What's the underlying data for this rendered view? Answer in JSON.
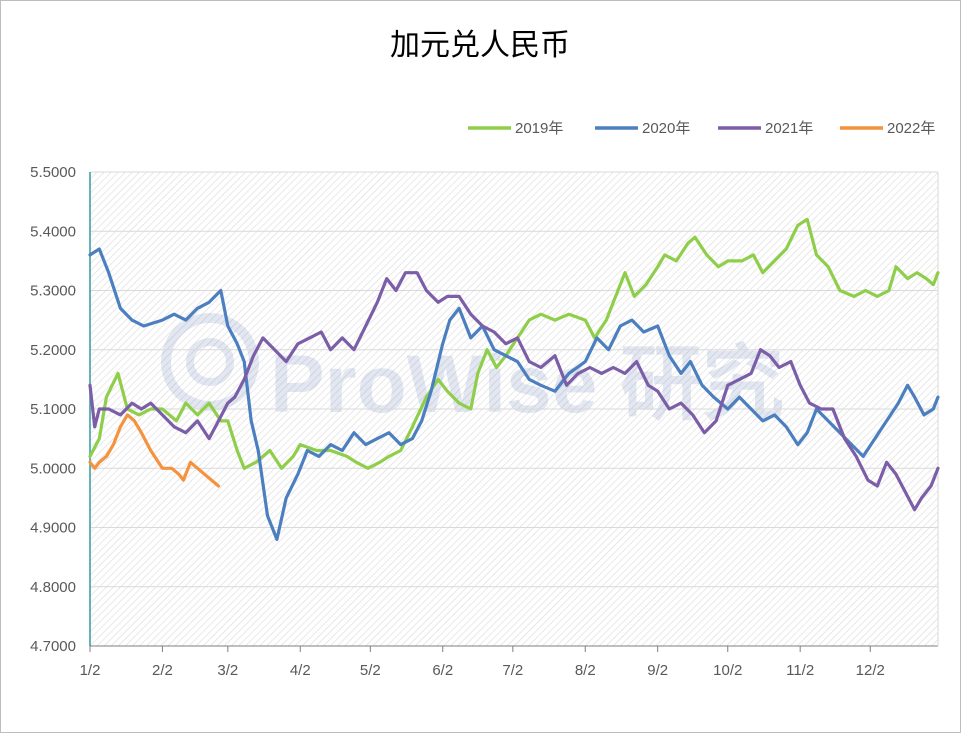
{
  "chart_data": {
    "type": "line",
    "title": "加元兑人民币",
    "xlabel": "",
    "ylabel": "",
    "ylim": [
      4.7,
      5.5
    ],
    "yticks": [
      "4.7000",
      "4.8000",
      "4.9000",
      "5.0000",
      "5.1000",
      "5.2000",
      "5.3000",
      "5.4000",
      "5.5000"
    ],
    "x_axis_start": "1/2",
    "x_axis_end": "12/31",
    "xticks": [
      "1/2",
      "2/2",
      "3/2",
      "4/2",
      "5/2",
      "6/2",
      "7/2",
      "8/2",
      "9/2",
      "10/2",
      "11/2",
      "12/2"
    ],
    "grid": true,
    "legend_position": "top-right",
    "watermark": "ProWise 研究",
    "series": [
      {
        "name": "2019年",
        "color": "#8fce4a",
        "points": [
          [
            "1/2",
            5.02
          ],
          [
            "1/6",
            5.05
          ],
          [
            "1/9",
            5.12
          ],
          [
            "1/14",
            5.16
          ],
          [
            "1/18",
            5.1
          ],
          [
            "1/23",
            5.09
          ],
          [
            "1/28",
            5.1
          ],
          [
            "2/2",
            5.1
          ],
          [
            "2/8",
            5.08
          ],
          [
            "2/12",
            5.11
          ],
          [
            "2/17",
            5.09
          ],
          [
            "2/22",
            5.11
          ],
          [
            "2/27",
            5.08
          ],
          [
            "3/2",
            5.08
          ],
          [
            "3/6",
            5.03
          ],
          [
            "3/9",
            5.0
          ],
          [
            "3/14",
            5.01
          ],
          [
            "3/20",
            5.03
          ],
          [
            "3/25",
            5.0
          ],
          [
            "3/30",
            5.02
          ],
          [
            "4/2",
            5.04
          ],
          [
            "4/9",
            5.03
          ],
          [
            "4/15",
            5.03
          ],
          [
            "4/22",
            5.02
          ],
          [
            "4/26",
            5.01
          ],
          [
            "5/1",
            5.0
          ],
          [
            "5/6",
            5.01
          ],
          [
            "5/10",
            5.02
          ],
          [
            "5/15",
            5.03
          ],
          [
            "5/20",
            5.07
          ],
          [
            "5/26",
            5.12
          ],
          [
            "5/31",
            5.15
          ],
          [
            "6/4",
            5.13
          ],
          [
            "6/9",
            5.11
          ],
          [
            "6/14",
            5.1
          ],
          [
            "6/17",
            5.16
          ],
          [
            "6/21",
            5.2
          ],
          [
            "6/25",
            5.17
          ],
          [
            "6/29",
            5.19
          ],
          [
            "7/4",
            5.22
          ],
          [
            "7/9",
            5.25
          ],
          [
            "7/14",
            5.26
          ],
          [
            "7/20",
            5.25
          ],
          [
            "7/26",
            5.26
          ],
          [
            "8/2",
            5.25
          ],
          [
            "8/6",
            5.22
          ],
          [
            "8/11",
            5.25
          ],
          [
            "8/15",
            5.29
          ],
          [
            "8/19",
            5.33
          ],
          [
            "8/23",
            5.29
          ],
          [
            "8/28",
            5.31
          ],
          [
            "9/2",
            5.34
          ],
          [
            "9/5",
            5.36
          ],
          [
            "9/10",
            5.35
          ],
          [
            "9/15",
            5.38
          ],
          [
            "9/18",
            5.39
          ],
          [
            "9/23",
            5.36
          ],
          [
            "9/28",
            5.34
          ],
          [
            "10/2",
            5.35
          ],
          [
            "10/8",
            5.35
          ],
          [
            "10/13",
            5.36
          ],
          [
            "10/17",
            5.33
          ],
          [
            "10/22",
            5.35
          ],
          [
            "10/27",
            5.37
          ],
          [
            "11/1",
            5.41
          ],
          [
            "11/5",
            5.42
          ],
          [
            "11/9",
            5.36
          ],
          [
            "11/14",
            5.34
          ],
          [
            "11/19",
            5.3
          ],
          [
            "11/25",
            5.29
          ],
          [
            "11/30",
            5.3
          ],
          [
            "12/5",
            5.29
          ],
          [
            "12/10",
            5.3
          ],
          [
            "12/13",
            5.34
          ],
          [
            "12/18",
            5.32
          ],
          [
            "12/22",
            5.33
          ],
          [
            "12/26",
            5.32
          ],
          [
            "12/29",
            5.31
          ],
          [
            "12/31",
            5.33
          ]
        ]
      },
      {
        "name": "2020年",
        "color": "#4c7fbf",
        "points": [
          [
            "1/2",
            5.36
          ],
          [
            "1/6",
            5.37
          ],
          [
            "1/10",
            5.33
          ],
          [
            "1/15",
            5.27
          ],
          [
            "1/20",
            5.25
          ],
          [
            "1/25",
            5.24
          ],
          [
            "2/2",
            5.25
          ],
          [
            "2/7",
            5.26
          ],
          [
            "2/12",
            5.25
          ],
          [
            "2/17",
            5.27
          ],
          [
            "2/22",
            5.28
          ],
          [
            "2/27",
            5.3
          ],
          [
            "3/2",
            5.24
          ],
          [
            "3/6",
            5.21
          ],
          [
            "3/9",
            5.18
          ],
          [
            "3/12",
            5.08
          ],
          [
            "3/15",
            5.03
          ],
          [
            "3/19",
            4.92
          ],
          [
            "3/23",
            4.88
          ],
          [
            "3/27",
            4.95
          ],
          [
            "4/1",
            4.99
          ],
          [
            "4/5",
            5.03
          ],
          [
            "4/10",
            5.02
          ],
          [
            "4/15",
            5.04
          ],
          [
            "4/20",
            5.03
          ],
          [
            "4/25",
            5.06
          ],
          [
            "4/30",
            5.04
          ],
          [
            "5/5",
            5.05
          ],
          [
            "5/10",
            5.06
          ],
          [
            "5/15",
            5.04
          ],
          [
            "5/20",
            5.05
          ],
          [
            "5/24",
            5.08
          ],
          [
            "5/28",
            5.13
          ],
          [
            "6/2",
            5.21
          ],
          [
            "6/5",
            5.25
          ],
          [
            "6/9",
            5.27
          ],
          [
            "6/14",
            5.22
          ],
          [
            "6/19",
            5.24
          ],
          [
            "6/24",
            5.2
          ],
          [
            "6/29",
            5.19
          ],
          [
            "7/4",
            5.18
          ],
          [
            "7/9",
            5.15
          ],
          [
            "7/14",
            5.14
          ],
          [
            "7/20",
            5.13
          ],
          [
            "7/26",
            5.16
          ],
          [
            "8/2",
            5.18
          ],
          [
            "8/7",
            5.22
          ],
          [
            "8/12",
            5.2
          ],
          [
            "8/17",
            5.24
          ],
          [
            "8/22",
            5.25
          ],
          [
            "8/27",
            5.23
          ],
          [
            "9/2",
            5.24
          ],
          [
            "9/7",
            5.19
          ],
          [
            "9/12",
            5.16
          ],
          [
            "9/16",
            5.18
          ],
          [
            "9/21",
            5.14
          ],
          [
            "9/26",
            5.12
          ],
          [
            "10/2",
            5.1
          ],
          [
            "10/7",
            5.12
          ],
          [
            "10/12",
            5.1
          ],
          [
            "10/17",
            5.08
          ],
          [
            "10/22",
            5.09
          ],
          [
            "10/27",
            5.07
          ],
          [
            "11/1",
            5.04
          ],
          [
            "11/5",
            5.06
          ],
          [
            "11/9",
            5.1
          ],
          [
            "11/14",
            5.08
          ],
          [
            "11/19",
            5.06
          ],
          [
            "11/24",
            5.04
          ],
          [
            "11/29",
            5.02
          ],
          [
            "12/4",
            5.05
          ],
          [
            "12/9",
            5.08
          ],
          [
            "12/14",
            5.11
          ],
          [
            "12/18",
            5.14
          ],
          [
            "12/21",
            5.12
          ],
          [
            "12/25",
            5.09
          ],
          [
            "12/29",
            5.1
          ],
          [
            "12/31",
            5.12
          ]
        ]
      },
      {
        "name": "2021年",
        "color": "#7b5ea7",
        "points": [
          [
            "1/2",
            5.14
          ],
          [
            "1/4",
            5.07
          ],
          [
            "1/6",
            5.1
          ],
          [
            "1/10",
            5.1
          ],
          [
            "1/15",
            5.09
          ],
          [
            "1/20",
            5.11
          ],
          [
            "1/24",
            5.1
          ],
          [
            "1/28",
            5.11
          ],
          [
            "2/2",
            5.09
          ],
          [
            "2/7",
            5.07
          ],
          [
            "2/12",
            5.06
          ],
          [
            "2/17",
            5.08
          ],
          [
            "2/22",
            5.05
          ],
          [
            "2/26",
            5.08
          ],
          [
            "3/2",
            5.11
          ],
          [
            "3/5",
            5.12
          ],
          [
            "3/9",
            5.15
          ],
          [
            "3/13",
            5.19
          ],
          [
            "3/17",
            5.22
          ],
          [
            "3/22",
            5.2
          ],
          [
            "3/27",
            5.18
          ],
          [
            "4/1",
            5.21
          ],
          [
            "4/6",
            5.22
          ],
          [
            "4/11",
            5.23
          ],
          [
            "4/15",
            5.2
          ],
          [
            "4/20",
            5.22
          ],
          [
            "4/25",
            5.2
          ],
          [
            "4/30",
            5.24
          ],
          [
            "5/5",
            5.28
          ],
          [
            "5/9",
            5.32
          ],
          [
            "5/13",
            5.3
          ],
          [
            "5/17",
            5.33
          ],
          [
            "5/22",
            5.33
          ],
          [
            "5/26",
            5.3
          ],
          [
            "5/31",
            5.28
          ],
          [
            "6/4",
            5.29
          ],
          [
            "6/9",
            5.29
          ],
          [
            "6/14",
            5.26
          ],
          [
            "6/19",
            5.24
          ],
          [
            "6/24",
            5.23
          ],
          [
            "6/29",
            5.21
          ],
          [
            "7/4",
            5.22
          ],
          [
            "7/9",
            5.18
          ],
          [
            "7/14",
            5.17
          ],
          [
            "7/20",
            5.19
          ],
          [
            "7/25",
            5.14
          ],
          [
            "7/30",
            5.16
          ],
          [
            "8/4",
            5.17
          ],
          [
            "8/9",
            5.16
          ],
          [
            "8/14",
            5.17
          ],
          [
            "8/19",
            5.16
          ],
          [
            "8/24",
            5.18
          ],
          [
            "8/29",
            5.14
          ],
          [
            "9/2",
            5.13
          ],
          [
            "9/7",
            5.1
          ],
          [
            "9/12",
            5.11
          ],
          [
            "9/17",
            5.09
          ],
          [
            "9/22",
            5.06
          ],
          [
            "9/27",
            5.08
          ],
          [
            "10/2",
            5.14
          ],
          [
            "10/7",
            5.15
          ],
          [
            "10/12",
            5.16
          ],
          [
            "10/16",
            5.2
          ],
          [
            "10/20",
            5.19
          ],
          [
            "10/24",
            5.17
          ],
          [
            "10/29",
            5.18
          ],
          [
            "11/2",
            5.14
          ],
          [
            "11/6",
            5.11
          ],
          [
            "11/11",
            5.1
          ],
          [
            "11/16",
            5.1
          ],
          [
            "11/21",
            5.05
          ],
          [
            "11/26",
            5.02
          ],
          [
            "12/1",
            4.98
          ],
          [
            "12/5",
            4.97
          ],
          [
            "12/9",
            5.01
          ],
          [
            "12/13",
            4.99
          ],
          [
            "12/17",
            4.96
          ],
          [
            "12/21",
            4.93
          ],
          [
            "12/24",
            4.95
          ],
          [
            "12/28",
            4.97
          ],
          [
            "12/31",
            5.0
          ]
        ]
      },
      {
        "name": "2022年",
        "color": "#f5923e",
        "points": [
          [
            "1/2",
            5.01
          ],
          [
            "1/4",
            5.0
          ],
          [
            "1/6",
            5.01
          ],
          [
            "1/9",
            5.02
          ],
          [
            "1/12",
            5.04
          ],
          [
            "1/15",
            5.07
          ],
          [
            "1/18",
            5.09
          ],
          [
            "1/21",
            5.08
          ],
          [
            "1/24",
            5.06
          ],
          [
            "1/28",
            5.03
          ],
          [
            "2/2",
            5.0
          ],
          [
            "2/6",
            5.0
          ],
          [
            "2/9",
            4.99
          ],
          [
            "2/11",
            4.98
          ],
          [
            "2/14",
            5.01
          ],
          [
            "2/17",
            5.0
          ],
          [
            "2/20",
            4.99
          ],
          [
            "2/23",
            4.98
          ],
          [
            "2/26",
            4.97
          ]
        ]
      }
    ]
  }
}
